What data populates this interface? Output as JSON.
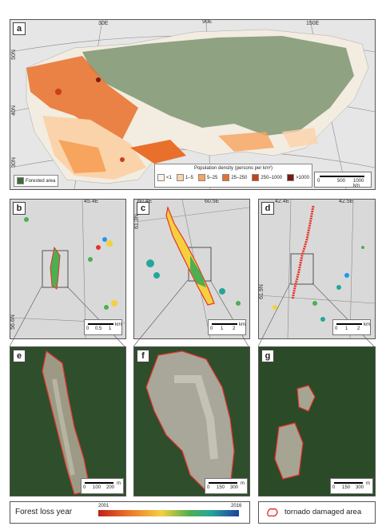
{
  "panel_a": {
    "label": "a",
    "top_coords": [
      "30E",
      "90E",
      "150E"
    ],
    "left_coords": [
      "50N",
      "40N",
      "30N"
    ],
    "forested_legend": "Forested area",
    "pop_title": "Population density (persons per km²)",
    "pop_classes": [
      {
        "label": "<1",
        "color": "#fdf2e4"
      },
      {
        "label": "1–5",
        "color": "#fbd3aa"
      },
      {
        "label": "5–25",
        "color": "#f6a45e"
      },
      {
        "label": "25–250",
        "color": "#e8702a"
      },
      {
        "label": "250–1000",
        "color": "#c8401a"
      },
      {
        "label": ">1000",
        "color": "#7a1a10"
      }
    ],
    "scale_labels": [
      "0",
      "500",
      "1000 km"
    ]
  },
  "panel_b": {
    "label": "b",
    "top_coord": "45.4E",
    "left_coord": "56.6N",
    "scale_labels": [
      "0",
      "0.5",
      "1"
    ],
    "scale_unit": "km"
  },
  "panel_c": {
    "label": "c",
    "top_coords": [
      "60.4E",
      "60.5E"
    ],
    "left_coord": "61.3N",
    "scale_labels": [
      "0",
      "1",
      "2"
    ],
    "scale_unit": "km"
  },
  "panel_d": {
    "label": "d",
    "top_coords": [
      "42.4E",
      "42.5E"
    ],
    "left_coord": "61.9N",
    "scale_labels": [
      "0",
      "1",
      "2"
    ],
    "scale_unit": "km"
  },
  "panel_e": {
    "label": "e",
    "scale_labels": [
      "0",
      "100",
      "200"
    ],
    "scale_unit": "m"
  },
  "panel_f": {
    "label": "f",
    "scale_labels": [
      "0",
      "150",
      "300"
    ],
    "scale_unit": "m"
  },
  "panel_g": {
    "label": "g",
    "scale_labels": [
      "0",
      "150",
      "300"
    ],
    "scale_unit": "m"
  },
  "legend": {
    "forest_loss_title": "Forest loss year",
    "year_start": "2001",
    "year_end": "2016",
    "tornado_label": "tornado damaged area",
    "colors": {
      "tornado": "#e8322a"
    }
  }
}
